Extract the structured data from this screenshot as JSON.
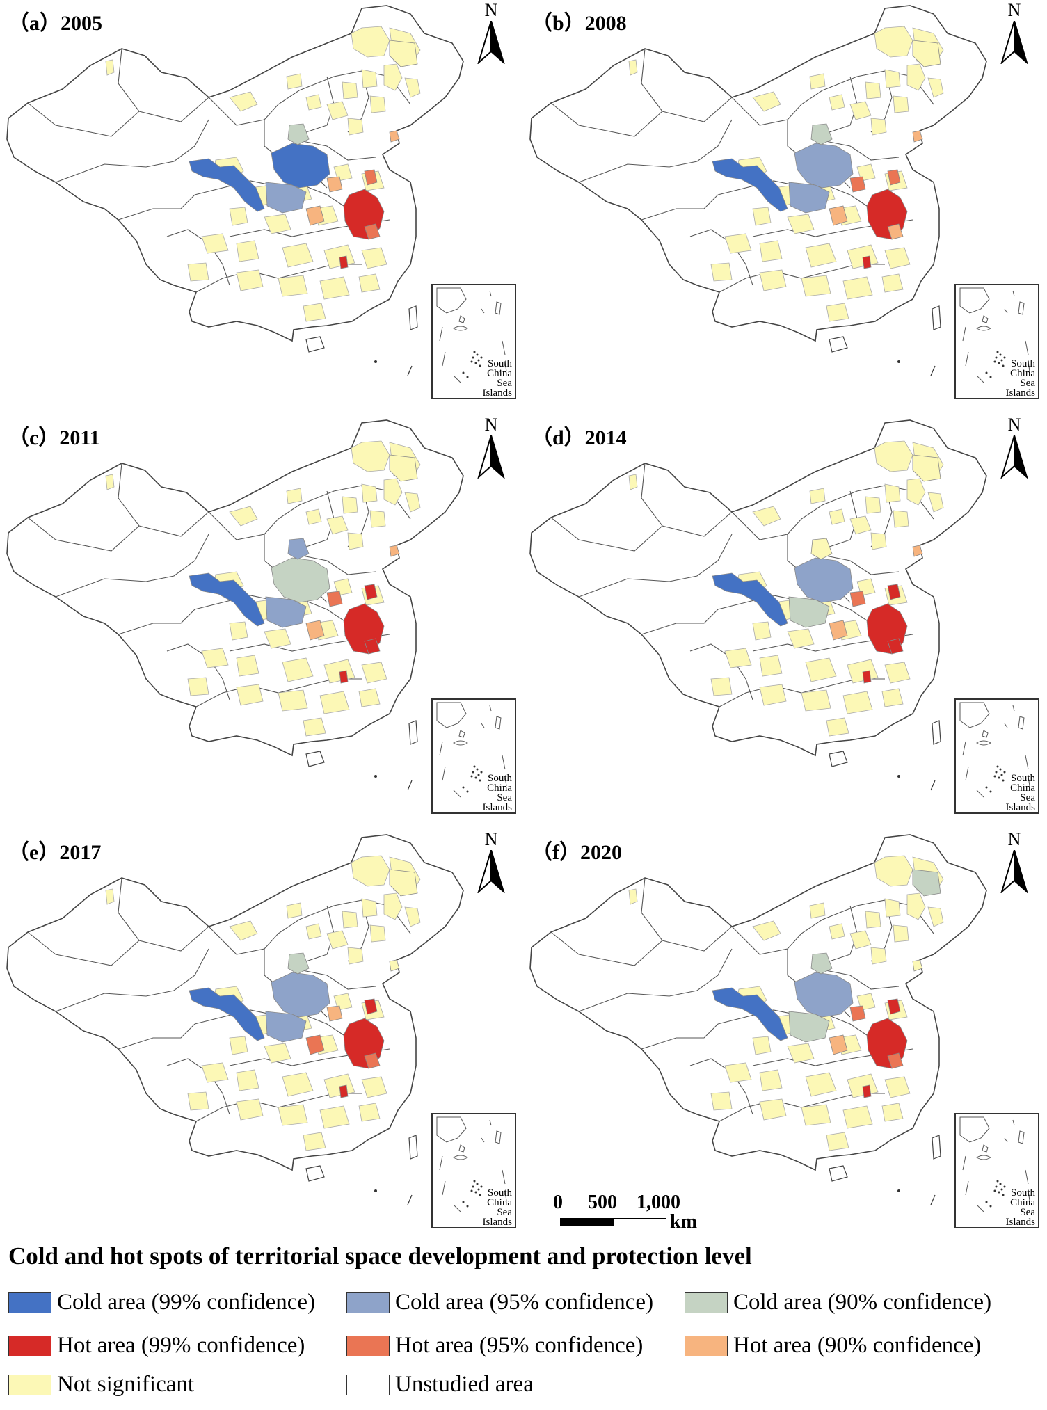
{
  "panels": [
    {
      "label": "（a）2005",
      "north": "N"
    },
    {
      "label": "（b）2008",
      "north": "N"
    },
    {
      "label": "（c）2011",
      "north": "N"
    },
    {
      "label": "（d）2014",
      "north": "N"
    },
    {
      "label": "（e）2017",
      "north": "N"
    },
    {
      "label": "（f）2020",
      "north": "N"
    }
  ],
  "inset": {
    "line1": "South",
    "line2": "China",
    "line3": "Sea",
    "line4": "Islands"
  },
  "scalebar": {
    "tick0": "0",
    "tick1": "500",
    "tick2": "1,000",
    "unit": "km"
  },
  "legend": {
    "title": "Cold and hot spots of territorial space development and protection level",
    "items": [
      {
        "label": "Cold area (99% confidence)",
        "color": "#4472c4"
      },
      {
        "label": "Cold area (95% confidence)",
        "color": "#8ea3c9"
      },
      {
        "label": "Cold area (90% confidence)",
        "color": "#c5d3c3"
      },
      {
        "label": "Hot area (99% confidence)",
        "color": "#d62a27"
      },
      {
        "label": "Hot area (95% confidence)",
        "color": "#ea7554"
      },
      {
        "label": "Hot area (90% confidence)",
        "color": "#f7b47f"
      },
      {
        "label": "Not significant",
        "color": "#fcf8b6"
      },
      {
        "label": "Unstudied area",
        "color": "#ffffff"
      }
    ]
  }
}
